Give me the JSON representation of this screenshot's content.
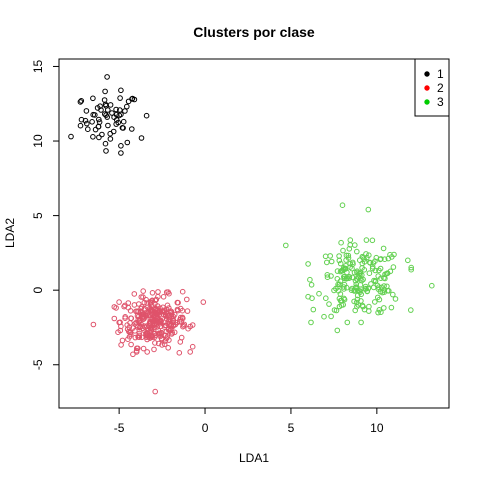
{
  "chart_data": {
    "type": "scatter",
    "title": "Clusters por clase",
    "xlabel": "LDA1",
    "ylabel": "LDA2",
    "xlim": [
      -8.5,
      14.2
    ],
    "ylim": [
      -7.9,
      15.5
    ],
    "x_ticks": [
      -5,
      0,
      5,
      10
    ],
    "x_tick_labels": [
      "-5",
      "0",
      "5",
      "10"
    ],
    "y_ticks": [
      -5,
      0,
      5,
      10,
      15
    ],
    "y_tick_labels": [
      "-5",
      "0",
      "5",
      "10",
      "15"
    ],
    "grid": false,
    "legend_position": "top-right",
    "point_shape": "open-circle",
    "series": [
      {
        "name": "1",
        "color": "#000000",
        "legend_color": "#000000",
        "center": [
          -5.5,
          11.5
        ],
        "spread": [
          0.85,
          0.9
        ],
        "count": 60,
        "outliers": [
          [
            -7.8,
            10.3
          ],
          [
            -5.7,
            14.3
          ],
          [
            -4.9,
            9.2
          ],
          [
            -3.7,
            10.2
          ],
          [
            -7.2,
            12.7
          ],
          [
            -4.9,
            13.4
          ],
          [
            -3.4,
            11.7
          ]
        ]
      },
      {
        "name": "2",
        "color": "#DF536B",
        "legend_color": "#FF0000",
        "center": [
          -3.0,
          -2.1
        ],
        "spread": [
          0.95,
          0.85
        ],
        "count": 300,
        "outliers": [
          [
            -2.9,
            -6.8
          ],
          [
            -6.5,
            -2.3
          ],
          [
            -0.1,
            -0.8
          ],
          [
            -1.5,
            -4.2
          ],
          [
            -5.0,
            -0.8
          ],
          [
            -4.2,
            -4.3
          ],
          [
            -1.3,
            -0.1
          ]
        ]
      },
      {
        "name": "3",
        "color": "#61D04F",
        "legend_color": "#00CD00",
        "center": [
          9.0,
          0.6
        ],
        "spread": [
          1.25,
          1.15
        ],
        "count": 200,
        "outliers": [
          [
            4.7,
            3.0
          ],
          [
            8.0,
            5.7
          ],
          [
            9.5,
            5.4
          ],
          [
            13.2,
            0.3
          ],
          [
            7.7,
            -2.7
          ],
          [
            6.3,
            -1.3
          ],
          [
            11.8,
            2.0
          ]
        ]
      }
    ]
  }
}
